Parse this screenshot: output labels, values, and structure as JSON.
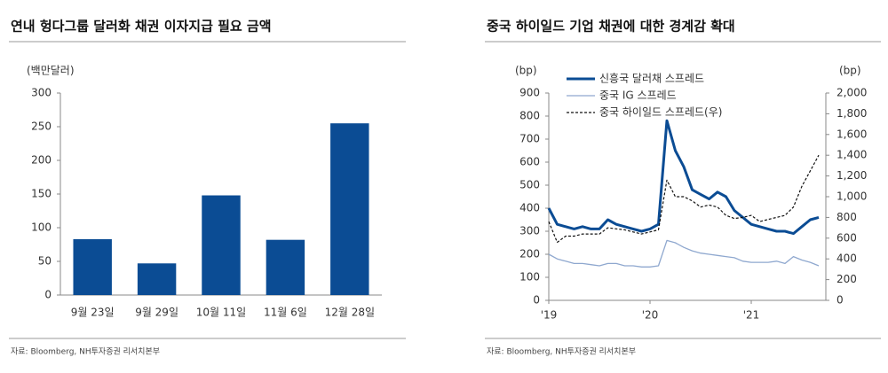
{
  "chart_data": [
    {
      "type": "bar",
      "title": "연내 헝다그룹 달러화 채권 이자지급 필요 금액",
      "ylabel": "(백만달러)",
      "categories": [
        "9월 23일",
        "9월 29일",
        "10월 11일",
        "11월 6일",
        "12월 28일"
      ],
      "values": [
        83,
        47,
        148,
        82,
        255
      ],
      "color": "#0b4c94",
      "ylim": [
        0,
        300
      ],
      "yticks": [
        0,
        50,
        100,
        150,
        200,
        250,
        300
      ],
      "grid": false,
      "source": "자료: Bloomberg, NH투자증권 리서치본부"
    },
    {
      "type": "line",
      "title": "중국 하이일드 기업 채권에 대한 경계감 확대",
      "ylabel": "(bp)",
      "y2label": "(bp)",
      "categories": [
        "'19",
        null,
        null,
        null,
        null,
        null,
        null,
        null,
        null,
        null,
        null,
        null,
        "'20",
        null,
        null,
        null,
        null,
        null,
        null,
        null,
        null,
        null,
        null,
        null,
        "'21",
        null,
        null,
        null,
        null,
        null,
        null,
        null,
        null
      ],
      "series": [
        {
          "name": "신흥국 달러채 스프레드",
          "color": "#0b4c94",
          "linestyle": "solid",
          "linewidth": 3,
          "values": [
            400,
            330,
            320,
            310,
            320,
            310,
            310,
            350,
            330,
            320,
            310,
            300,
            310,
            330,
            780,
            650,
            580,
            480,
            460,
            440,
            470,
            450,
            390,
            360,
            330,
            320,
            310,
            300,
            300,
            290,
            320,
            350,
            360
          ]
        },
        {
          "name": "중국 IG 스프레드",
          "color": "#8fa8cf",
          "linestyle": "solid",
          "linewidth": 1.3,
          "values": [
            200,
            180,
            170,
            160,
            160,
            155,
            150,
            160,
            160,
            150,
            150,
            145,
            145,
            150,
            260,
            250,
            230,
            215,
            205,
            200,
            195,
            190,
            185,
            170,
            165,
            165,
            165,
            170,
            160,
            190,
            175,
            165,
            150
          ]
        },
        {
          "name": "중국 하이일드 스프레드(우)",
          "color": "#111111",
          "linestyle": "dashed",
          "linewidth": 1.2,
          "axis": "y2",
          "values": [
            760,
            560,
            620,
            620,
            640,
            640,
            640,
            700,
            690,
            680,
            660,
            640,
            660,
            680,
            1160,
            1000,
            1000,
            960,
            900,
            920,
            900,
            820,
            790,
            800,
            820,
            760,
            780,
            800,
            820,
            900,
            1100,
            1250,
            1400
          ]
        }
      ],
      "ylim": [
        0,
        900
      ],
      "yticks": [
        0,
        100,
        200,
        300,
        400,
        500,
        600,
        700,
        800,
        900
      ],
      "y2lim": [
        0,
        2000
      ],
      "y2ticks": [
        0,
        200,
        400,
        600,
        800,
        {
          "value": 1000,
          "label": "1,000"
        },
        {
          "value": 1200,
          "label": "1,200"
        },
        {
          "value": 1400,
          "label": "1,400"
        },
        {
          "value": 1600,
          "label": "1,600"
        },
        {
          "value": 1800,
          "label": "1,800"
        },
        {
          "value": 2000,
          "label": "2,000"
        }
      ],
      "legend": "upper left",
      "grid": false,
      "source": "자료: Bloomberg, NH투자증권 리서치본부"
    }
  ]
}
